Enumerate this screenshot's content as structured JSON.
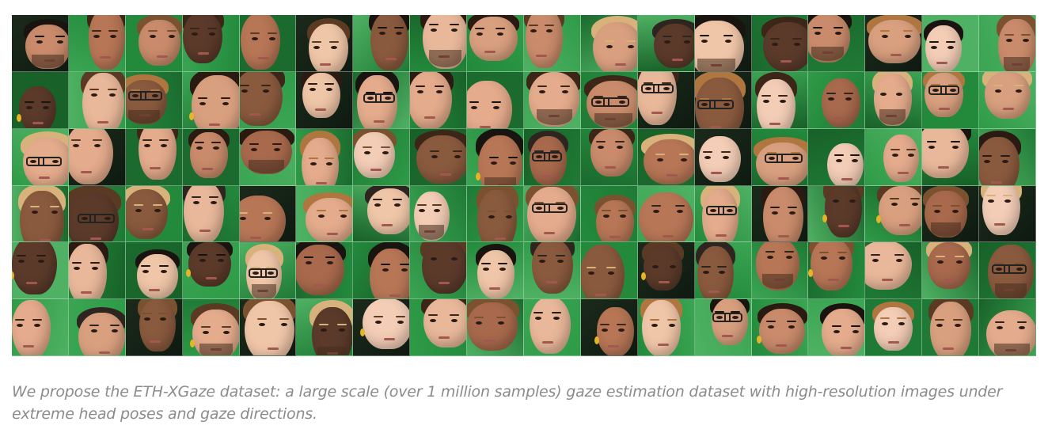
{
  "figure": {
    "caption": "We propose the ETH-XGaze dataset: a large scale (over 1 million samples) gaze estimation dataset with high-resolution images under extreme head poses and gaze directions.",
    "grid": {
      "columns": 18,
      "rows": 6
    },
    "colors": {
      "backdrop_green": "#1f7a35",
      "backdrop_light_green": "#4aa35b",
      "caption_text": "#8b8b8b"
    },
    "thumbnail_semantic": "face-photo"
  }
}
